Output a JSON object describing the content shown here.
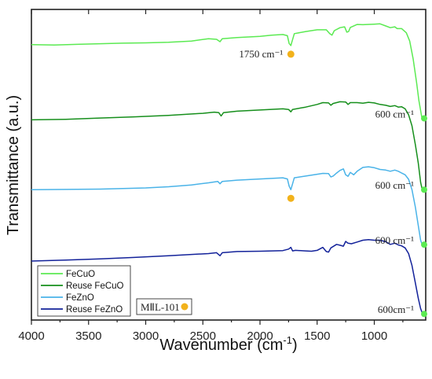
{
  "chart_data": {
    "type": "line",
    "xlabel": "Wavenumber (cm",
    "xlabel_sup": "-1",
    "xlabel_end": ")",
    "ylabel": "Transmittance (a.u.)",
    "xlim": [
      4000,
      550
    ],
    "x_ticks": [
      4000,
      3500,
      3000,
      2500,
      2000,
      1500,
      1000
    ],
    "x_tick_labels": [
      "4000",
      "3500",
      "3000",
      "2500",
      "2000",
      "1500",
      "1000"
    ],
    "y_ticks_shown": false,
    "series": [
      {
        "name": "FeCuO",
        "color": "#5bea52",
        "points": [
          [
            4000,
            0.908
          ],
          [
            3800,
            0.907
          ],
          [
            3600,
            0.909
          ],
          [
            3400,
            0.911
          ],
          [
            3200,
            0.913
          ],
          [
            3000,
            0.914
          ],
          [
            2800,
            0.916
          ],
          [
            2600,
            0.92
          ],
          [
            2450,
            0.928
          ],
          [
            2380,
            0.926
          ],
          [
            2350,
            0.918
          ],
          [
            2330,
            0.928
          ],
          [
            2200,
            0.932
          ],
          [
            2000,
            0.936
          ],
          [
            1900,
            0.94
          ],
          [
            1800,
            0.942
          ],
          [
            1760,
            0.938
          ],
          [
            1745,
            0.912
          ],
          [
            1730,
            0.905
          ],
          [
            1715,
            0.925
          ],
          [
            1700,
            0.945
          ],
          [
            1600,
            0.952
          ],
          [
            1500,
            0.958
          ],
          [
            1420,
            0.958
          ],
          [
            1390,
            0.945
          ],
          [
            1370,
            0.94
          ],
          [
            1350,
            0.955
          ],
          [
            1300,
            0.965
          ],
          [
            1260,
            0.968
          ],
          [
            1240,
            0.95
          ],
          [
            1225,
            0.952
          ],
          [
            1210,
            0.966
          ],
          [
            1150,
            0.976
          ],
          [
            1100,
            0.975
          ],
          [
            1000,
            0.977
          ],
          [
            950,
            0.978
          ],
          [
            900,
            0.971
          ],
          [
            860,
            0.965
          ],
          [
            820,
            0.968
          ],
          [
            800,
            0.962
          ],
          [
            760,
            0.962
          ],
          [
            720,
            0.948
          ],
          [
            690,
            0.92
          ],
          [
            660,
            0.86
          ],
          [
            630,
            0.78
          ],
          [
            610,
            0.72
          ],
          [
            585,
            0.665
          ],
          [
            570,
            0.66
          ]
        ]
      },
      {
        "name": "Reuse FeCuO",
        "color": "#168f1c",
        "points": [
          [
            4000,
            0.655
          ],
          [
            3700,
            0.657
          ],
          [
            3400,
            0.661
          ],
          [
            3100,
            0.665
          ],
          [
            2800,
            0.67
          ],
          [
            2500,
            0.677
          ],
          [
            2400,
            0.681
          ],
          [
            2360,
            0.679
          ],
          [
            2340,
            0.668
          ],
          [
            2320,
            0.679
          ],
          [
            2200,
            0.684
          ],
          [
            2000,
            0.688
          ],
          [
            1800,
            0.692
          ],
          [
            1750,
            0.69
          ],
          [
            1730,
            0.682
          ],
          [
            1715,
            0.69
          ],
          [
            1600,
            0.698
          ],
          [
            1500,
            0.707
          ],
          [
            1450,
            0.713
          ],
          [
            1400,
            0.712
          ],
          [
            1380,
            0.704
          ],
          [
            1360,
            0.71
          ],
          [
            1300,
            0.716
          ],
          [
            1250,
            0.715
          ],
          [
            1230,
            0.707
          ],
          [
            1210,
            0.713
          ],
          [
            1150,
            0.713
          ],
          [
            1100,
            0.711
          ],
          [
            1050,
            0.714
          ],
          [
            1000,
            0.712
          ],
          [
            950,
            0.707
          ],
          [
            900,
            0.704
          ],
          [
            860,
            0.7
          ],
          [
            820,
            0.703
          ],
          [
            790,
            0.698
          ],
          [
            760,
            0.699
          ],
          [
            730,
            0.692
          ],
          [
            700,
            0.672
          ],
          [
            670,
            0.635
          ],
          [
            640,
            0.57
          ],
          [
            615,
            0.51
          ],
          [
            595,
            0.445
          ],
          [
            580,
            0.42
          ],
          [
            570,
            0.42
          ]
        ]
      },
      {
        "name": "FeZnO",
        "color": "#4ab3e8",
        "points": [
          [
            4000,
            0.42
          ],
          [
            3700,
            0.421
          ],
          [
            3400,
            0.422
          ],
          [
            3200,
            0.424
          ],
          [
            3000,
            0.426
          ],
          [
            2800,
            0.43
          ],
          [
            2600,
            0.436
          ],
          [
            2450,
            0.443
          ],
          [
            2370,
            0.448
          ],
          [
            2350,
            0.44
          ],
          [
            2330,
            0.448
          ],
          [
            2200,
            0.452
          ],
          [
            2000,
            0.456
          ],
          [
            1800,
            0.46
          ],
          [
            1760,
            0.456
          ],
          [
            1745,
            0.432
          ],
          [
            1730,
            0.42
          ],
          [
            1715,
            0.44
          ],
          [
            1700,
            0.46
          ],
          [
            1600,
            0.466
          ],
          [
            1500,
            0.472
          ],
          [
            1450,
            0.475
          ],
          [
            1400,
            0.474
          ],
          [
            1380,
            0.463
          ],
          [
            1360,
            0.466
          ],
          [
            1330,
            0.476
          ],
          [
            1300,
            0.485
          ],
          [
            1270,
            0.49
          ],
          [
            1250,
            0.47
          ],
          [
            1230,
            0.465
          ],
          [
            1210,
            0.478
          ],
          [
            1180,
            0.47
          ],
          [
            1150,
            0.482
          ],
          [
            1100,
            0.495
          ],
          [
            1050,
            0.497
          ],
          [
            1000,
            0.494
          ],
          [
            950,
            0.488
          ],
          [
            900,
            0.486
          ],
          [
            860,
            0.482
          ],
          [
            820,
            0.486
          ],
          [
            790,
            0.482
          ],
          [
            760,
            0.476
          ],
          [
            730,
            0.47
          ],
          [
            700,
            0.455
          ],
          [
            670,
            0.42
          ],
          [
            640,
            0.36
          ],
          [
            615,
            0.3
          ],
          [
            595,
            0.25
          ],
          [
            580,
            0.235
          ],
          [
            570,
            0.235
          ]
        ]
      },
      {
        "name": "Reuse FeZnO",
        "color": "#13229a",
        "points": [
          [
            4000,
            0.18
          ],
          [
            3700,
            0.183
          ],
          [
            3400,
            0.187
          ],
          [
            3100,
            0.192
          ],
          [
            2800,
            0.198
          ],
          [
            2600,
            0.202
          ],
          [
            2450,
            0.205
          ],
          [
            2380,
            0.208
          ],
          [
            2350,
            0.198
          ],
          [
            2330,
            0.208
          ],
          [
            2200,
            0.212
          ],
          [
            2000,
            0.213
          ],
          [
            1800,
            0.215
          ],
          [
            1750,
            0.22
          ],
          [
            1730,
            0.226
          ],
          [
            1715,
            0.214
          ],
          [
            1690,
            0.216
          ],
          [
            1600,
            0.214
          ],
          [
            1550,
            0.213
          ],
          [
            1500,
            0.216
          ],
          [
            1450,
            0.226
          ],
          [
            1420,
            0.212
          ],
          [
            1400,
            0.21
          ],
          [
            1380,
            0.224
          ],
          [
            1330,
            0.236
          ],
          [
            1300,
            0.233
          ],
          [
            1270,
            0.23
          ],
          [
            1250,
            0.246
          ],
          [
            1230,
            0.24
          ],
          [
            1200,
            0.238
          ],
          [
            1150,
            0.244
          ],
          [
            1100,
            0.25
          ],
          [
            1050,
            0.252
          ],
          [
            1000,
            0.25
          ],
          [
            950,
            0.25
          ],
          [
            900,
            0.245
          ],
          [
            860,
            0.236
          ],
          [
            820,
            0.24
          ],
          [
            790,
            0.234
          ],
          [
            760,
            0.231
          ],
          [
            730,
            0.224
          ],
          [
            700,
            0.205
          ],
          [
            670,
            0.165
          ],
          [
            640,
            0.105
          ],
          [
            615,
            0.055
          ],
          [
            595,
            0.02
          ],
          [
            580,
            0.005
          ],
          [
            570,
            0.002
          ]
        ]
      }
    ],
    "annotations": [
      {
        "text": "1750 cm⁻¹",
        "marker_x": 1730,
        "near_series": "FeCuO"
      },
      {
        "text": "600 cm⁻¹",
        "marker_x": 570,
        "near_series": "FeCuO"
      },
      {
        "text": "600 cm⁻¹",
        "marker_x": 570,
        "near_series": "Reuse FeCuO"
      },
      {
        "text": "600 cm⁻¹",
        "marker_x": 570,
        "near_series": "FeZnO"
      },
      {
        "text": "600cm⁻¹",
        "marker_x": 570,
        "near_series": "Reuse FeZnO"
      }
    ],
    "extra_markers": [
      {
        "marker_x": 1730,
        "near_series": "FeZnO"
      }
    ],
    "marker_legend": {
      "text": "MⅡL-101",
      "marker_color": "#f2b21b",
      "end_marker_color": "#5bea52"
    },
    "legend_position": "bottom-left",
    "grid": false
  }
}
